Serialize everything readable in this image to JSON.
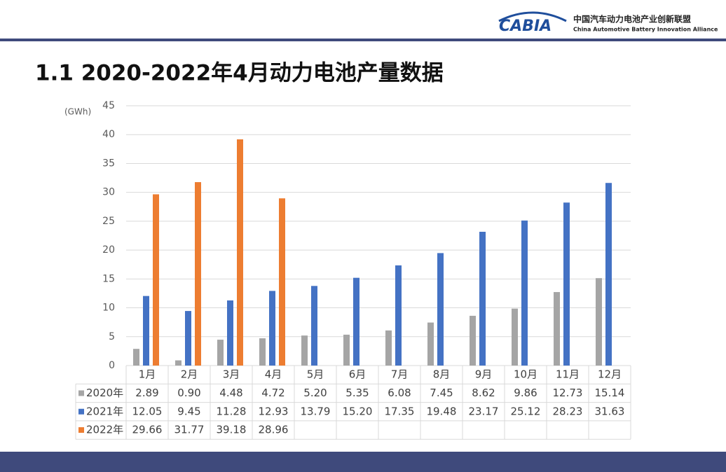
{
  "header": {
    "logo": "CABIA",
    "org_cn": "中国汽车动力电池产业创新联盟",
    "org_en": "China Automotive Battery Innovation Alliance"
  },
  "chart_data": {
    "type": "bar",
    "title": "1.1 2020-2022年4月动力电池产量数据",
    "y_label": "(GWh)",
    "categories": [
      "1月",
      "2月",
      "3月",
      "4月",
      "5月",
      "6月",
      "7月",
      "8月",
      "9月",
      "10月",
      "11月",
      "12月"
    ],
    "series": [
      {
        "name": "2020年",
        "color": "#a5a5a5",
        "values": [
          2.89,
          0.9,
          4.48,
          4.72,
          5.2,
          5.35,
          6.08,
          7.45,
          8.62,
          9.86,
          12.73,
          15.14
        ],
        "value_labels": [
          "2.89",
          "0.90",
          "4.48",
          "4.72",
          "5.20",
          "5.35",
          "6.08",
          "7.45",
          "8.62",
          "9.86",
          "12.73",
          "15.14"
        ]
      },
      {
        "name": "2021年",
        "color": "#4472c4",
        "values": [
          12.05,
          9.45,
          11.28,
          12.93,
          13.79,
          15.2,
          17.35,
          19.48,
          23.17,
          25.12,
          28.23,
          31.63
        ],
        "value_labels": [
          "12.05",
          "9.45",
          "11.28",
          "12.93",
          "13.79",
          "15.20",
          "17.35",
          "19.48",
          "23.17",
          "25.12",
          "28.23",
          "31.63"
        ]
      },
      {
        "name": "2022年",
        "color": "#ed7d31",
        "values": [
          29.66,
          31.77,
          39.18,
          28.96,
          null,
          null,
          null,
          null,
          null,
          null,
          null,
          null
        ],
        "value_labels": [
          "29.66",
          "31.77",
          "39.18",
          "28.96",
          null,
          null,
          null,
          null,
          null,
          null,
          null,
          null
        ]
      }
    ],
    "ylim": [
      0,
      45
    ],
    "yticks": [
      0,
      5,
      10,
      15,
      20,
      25,
      30,
      35,
      40,
      45
    ],
    "grid": true
  }
}
